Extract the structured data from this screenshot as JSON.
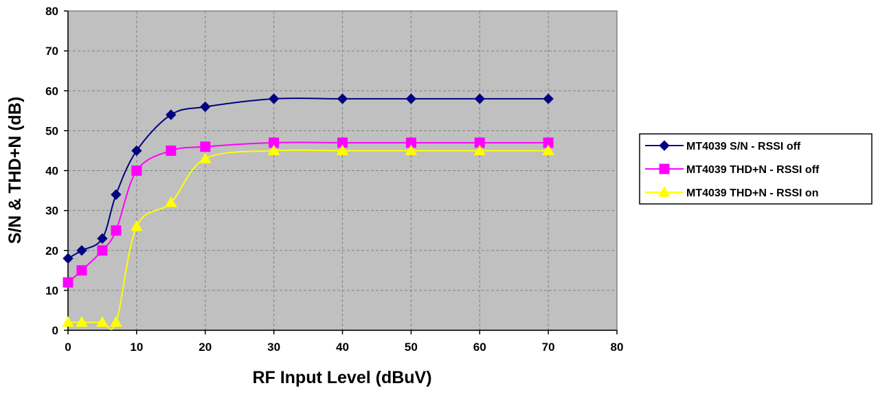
{
  "chart_data": {
    "type": "line",
    "title": "",
    "xlabel": "RF Input Level (dBuV)",
    "ylabel": "S/N & THD+N (dB)",
    "xlim": [
      0,
      80
    ],
    "ylim": [
      0,
      80
    ],
    "x_ticks": [
      0,
      10,
      20,
      30,
      40,
      50,
      60,
      70,
      80
    ],
    "y_ticks": [
      0,
      10,
      20,
      30,
      40,
      50,
      60,
      70,
      80
    ],
    "grid": true,
    "smooth_lines": true,
    "plot_background": "#c0c0c0",
    "legend_position": "right",
    "series": [
      {
        "name": "MT4039 S/N - RSSI off",
        "color": "#000080",
        "marker": "diamond",
        "x": [
          0,
          2,
          5,
          7,
          10,
          15,
          20,
          30,
          40,
          50,
          60,
          70
        ],
        "y": [
          18,
          20,
          23,
          34,
          45,
          54,
          56,
          58,
          58,
          58,
          58,
          58
        ]
      },
      {
        "name": "MT4039 THD+N - RSSI off",
        "color": "#ff00ff",
        "marker": "square",
        "x": [
          0,
          2,
          5,
          7,
          10,
          15,
          20,
          30,
          40,
          50,
          60,
          70
        ],
        "y": [
          12,
          15,
          20,
          25,
          40,
          45,
          46,
          47,
          47,
          47,
          47,
          47
        ]
      },
      {
        "name": "MT4039 THD+N - RSSI on",
        "color": "#ffff00",
        "marker": "triangle",
        "x": [
          0,
          2,
          5,
          7,
          10,
          15,
          20,
          30,
          40,
          50,
          60,
          70
        ],
        "y": [
          2,
          2,
          2,
          2,
          26,
          32,
          43,
          45,
          45,
          45,
          45,
          45
        ]
      }
    ]
  }
}
